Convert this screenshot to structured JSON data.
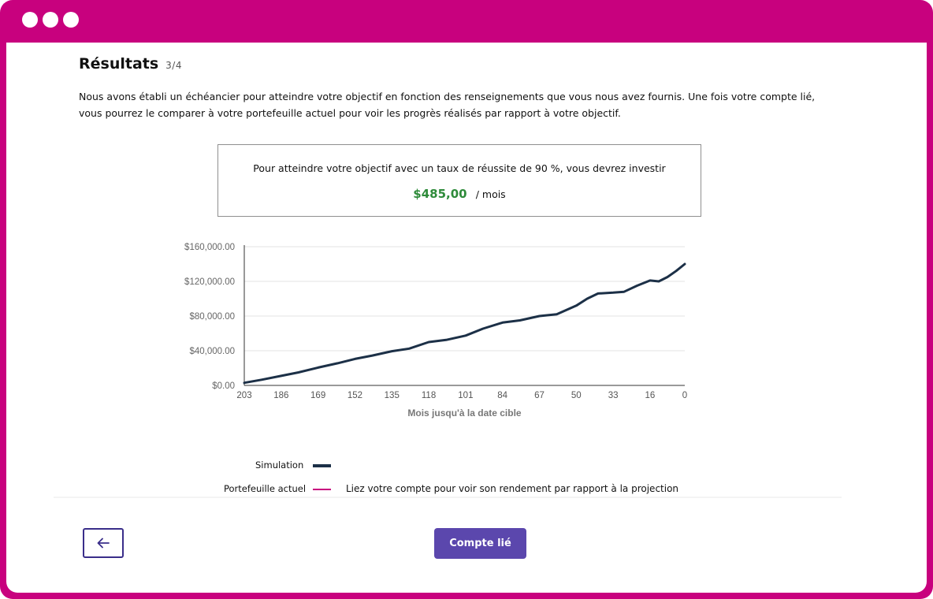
{
  "window": {
    "controls": [
      "dot",
      "dot",
      "dot"
    ],
    "frame_color": "#c8017e"
  },
  "header": {
    "title": "Résultats",
    "step": "3/4"
  },
  "intro": "Nous avons établi un échéancier pour atteindre votre objectif en fonction des renseignements que vous nous avez fournis. Une fois votre compte lié, vous pourrez le comparer à votre portefeuille actuel pour voir les progrès réalisés par rapport à votre objectif.",
  "goal_box": {
    "text": "Pour atteindre votre objectif avec un taux de réussite de 90 %, vous devrez investir",
    "amount": "$485,00",
    "per": "/ mois",
    "amount_color": "#2e8b3a"
  },
  "chart_data": {
    "type": "line",
    "title": "",
    "xlabel": "Mois jusqu'à la date cible",
    "ylabel": "",
    "xlim": [
      203,
      0
    ],
    "ylim": [
      0,
      160000
    ],
    "x_ticks": [
      "203",
      "186",
      "169",
      "152",
      "135",
      "118",
      "101",
      "84",
      "67",
      "50",
      "33",
      "16",
      "0"
    ],
    "y_ticks": [
      "$0.00",
      "$40,000.00",
      "$80,000.00",
      "$120,000.00",
      "$160,000.00"
    ],
    "grid": "horizontal",
    "series": [
      {
        "name": "Simulation",
        "color": "#1c3047",
        "x": [
          203,
          195,
          186,
          178,
          169,
          160,
          152,
          144,
          135,
          127,
          118,
          110,
          101,
          93,
          84,
          76,
          67,
          59,
          50,
          45,
          40,
          33,
          28,
          22,
          16,
          12,
          8,
          4,
          0
        ],
        "y": [
          3000,
          6500,
          11000,
          15000,
          20500,
          25500,
          30500,
          34500,
          39500,
          42500,
          50000,
          52500,
          57500,
          65500,
          72500,
          75000,
          80000,
          82000,
          92000,
          100000,
          106000,
          107000,
          108000,
          115000,
          121000,
          120000,
          125000,
          132000,
          140000
        ]
      }
    ],
    "legend": [
      {
        "label": "Simulation",
        "color": "#1c3047"
      },
      {
        "label": "Portefeuille actuel",
        "color": "#c8017e",
        "note": "Liez votre compte pour voir son rendement par rapport à la projection"
      }
    ]
  },
  "actions": {
    "back_icon": "arrow-left-icon",
    "primary_label": "Compte lié",
    "primary_color": "#5b47ad"
  }
}
